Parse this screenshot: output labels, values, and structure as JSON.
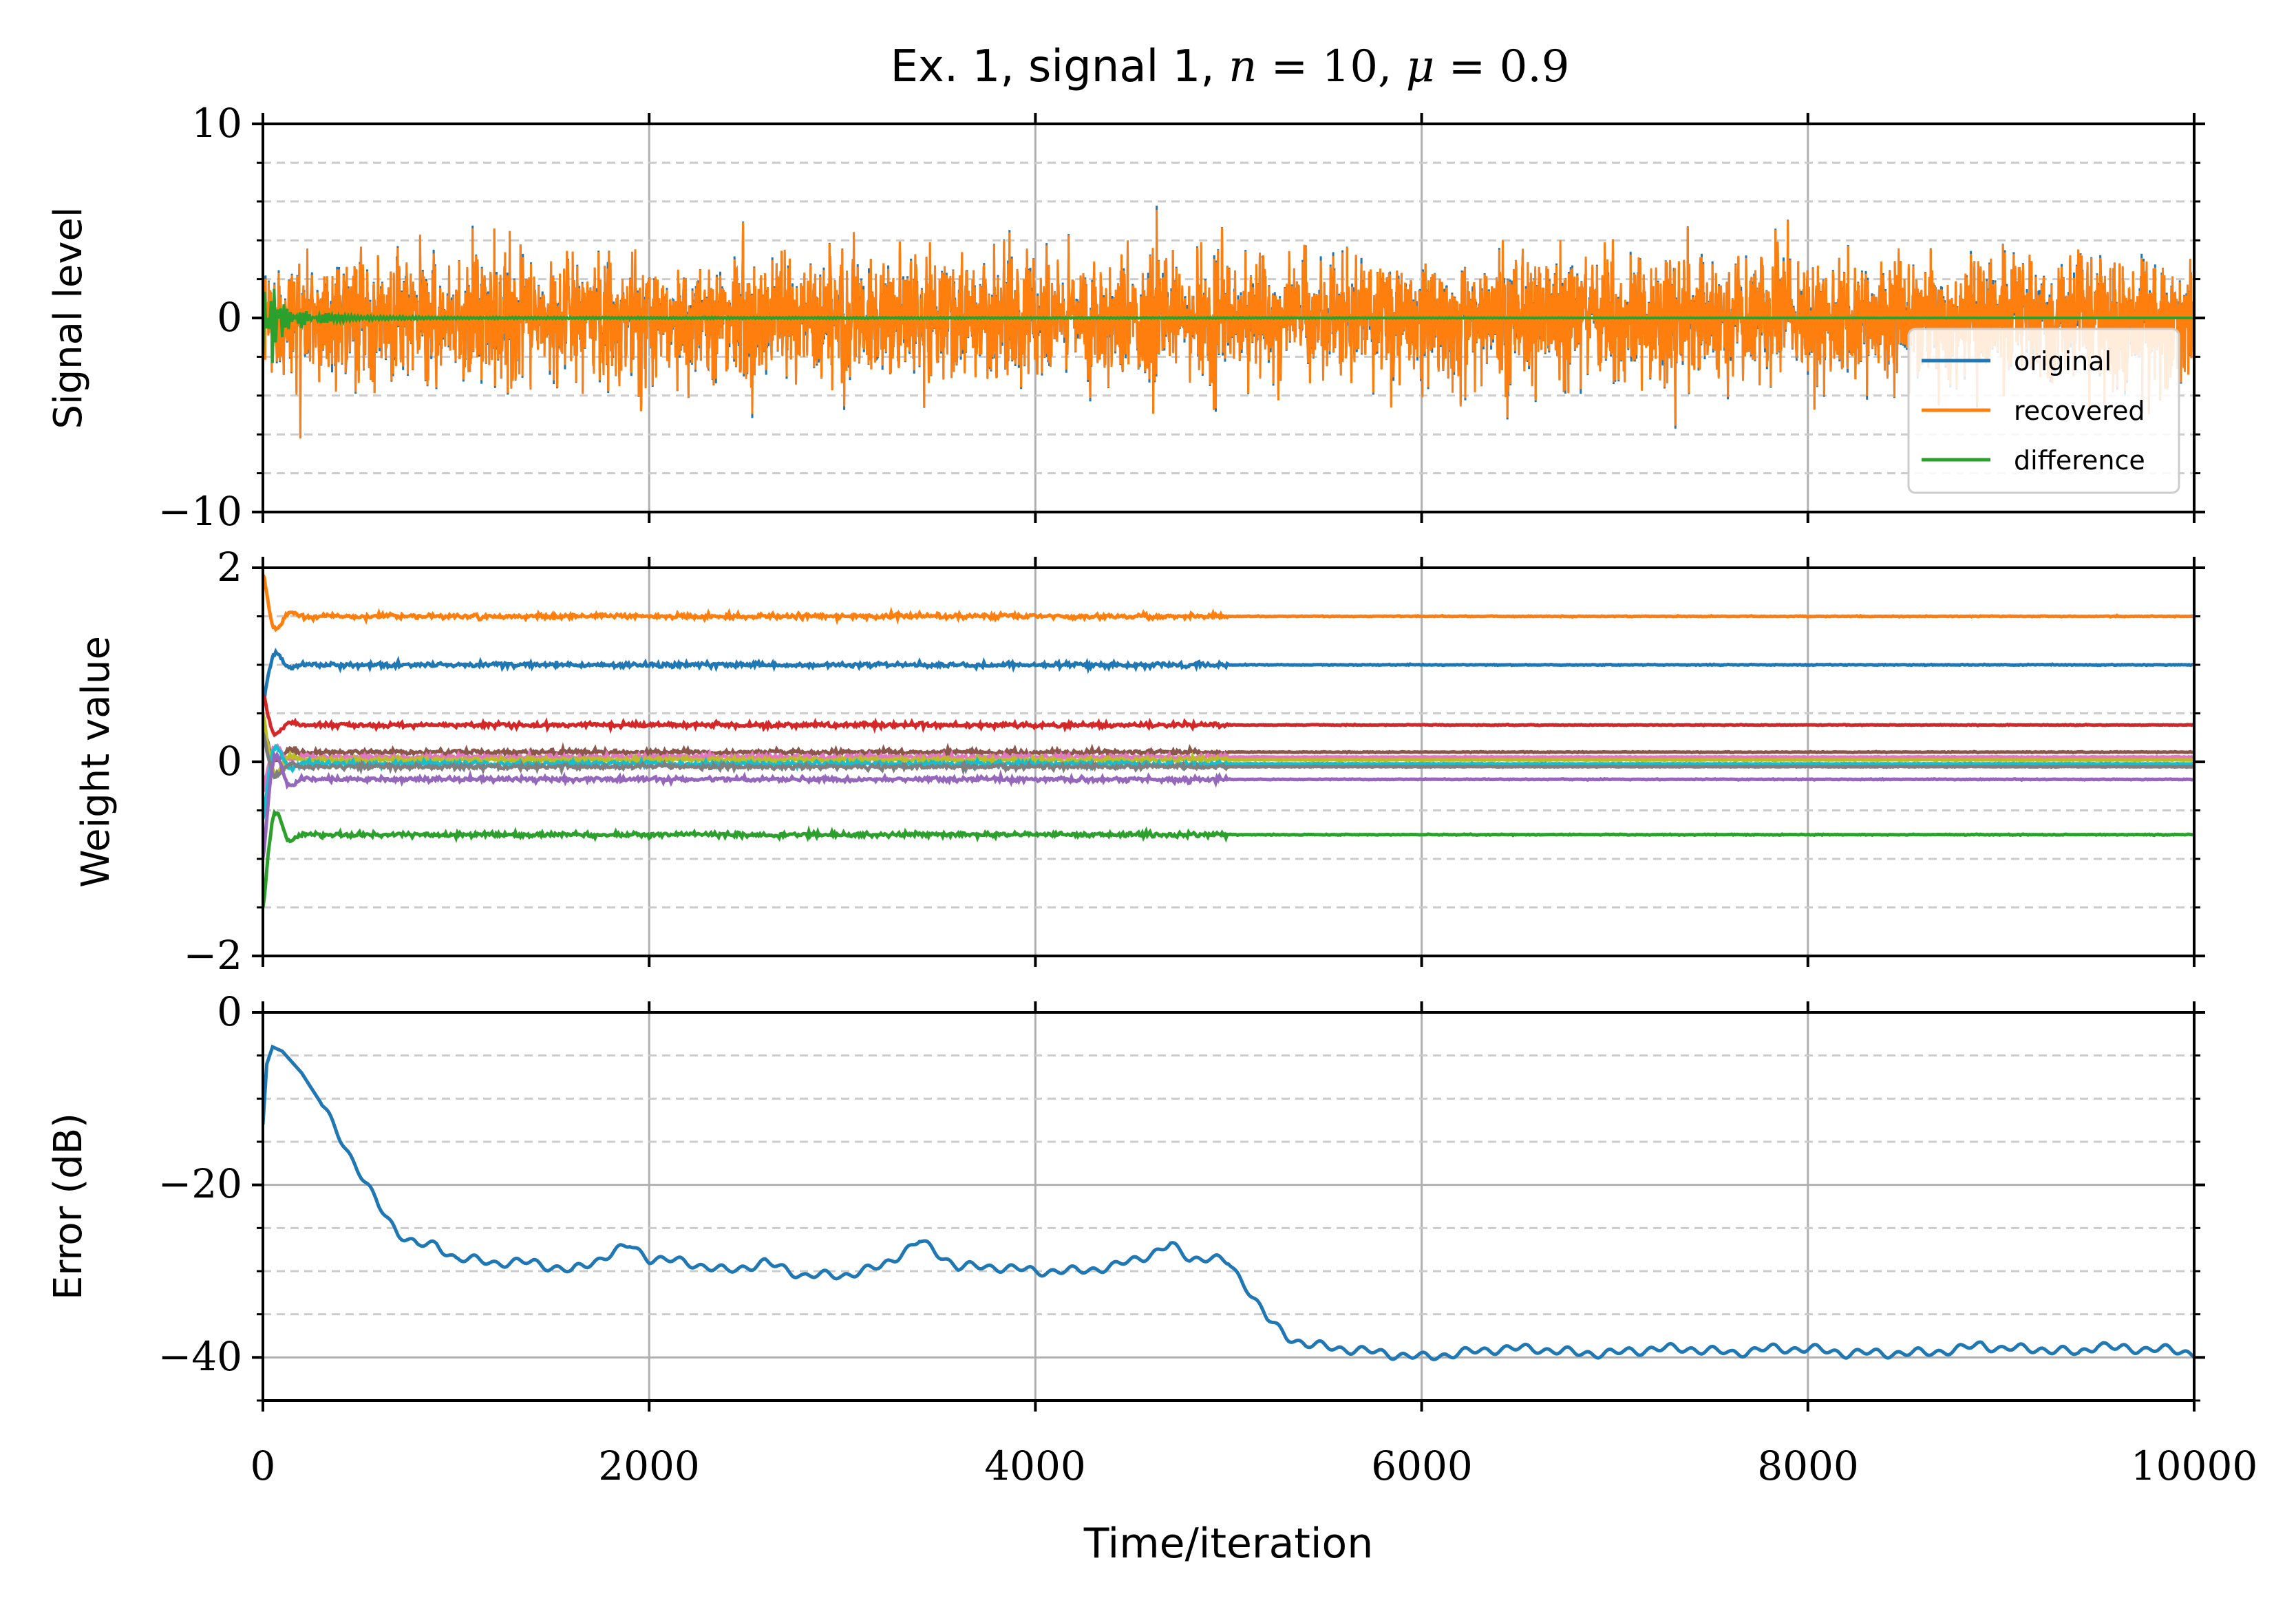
{
  "title_parts": {
    "prefix": "Ex. 1, signal 1, ",
    "n_var": "n",
    "n_eq": " = 10, ",
    "mu_var": "μ",
    "mu_eq": " = 0.9"
  },
  "colors": {
    "blue": "#1f77b4",
    "orange": "#ff7f0e",
    "green": "#2ca02c",
    "red": "#d62728",
    "purple": "#9467bd",
    "brown": "#8c564b",
    "pink": "#e377c2",
    "gray": "#7f7f7f",
    "olive": "#bcbd22",
    "cyan": "#17becf",
    "grid": "#b0b0b0",
    "minor_grid": "#cccccc"
  },
  "chart_data": [
    {
      "type": "line",
      "ylabel": "Signal level",
      "xlim": [
        0,
        10000
      ],
      "ylim": [
        -10,
        10
      ],
      "yticks": [
        "10",
        "0",
        "−10"
      ],
      "grid": true,
      "legend_position": "lower-right",
      "series": [
        {
          "name": "original",
          "color": "blue",
          "description_points": {
            "x": [
              0,
              10000
            ],
            "amplitude": [
              4,
              4
            ]
          }
        },
        {
          "name": "recovered",
          "color": "orange",
          "description_points": {
            "x": [
              0,
              10000
            ],
            "amplitude": [
              4,
              4
            ]
          }
        },
        {
          "name": "difference",
          "color": "green",
          "points": {
            "x": [
              0,
              50,
              100,
              200,
              300,
              500,
              1000,
              10000
            ],
            "y": [
              2.5,
              -2.5,
              1.2,
              -0.6,
              0.3,
              0.1,
              0.05,
              0.0
            ]
          }
        }
      ]
    },
    {
      "type": "line",
      "ylabel": "Weight value",
      "xlim": [
        0,
        10000
      ],
      "ylim": [
        -2,
        2
      ],
      "yticks": [
        "2",
        "0",
        "−2"
      ],
      "grid": true,
      "series": [
        {
          "color": "orange",
          "final": 1.5,
          "start": 1.95
        },
        {
          "color": "blue",
          "final": 1.0,
          "start": 0.6
        },
        {
          "color": "red",
          "final": 0.38,
          "start": 0.7
        },
        {
          "color": "brown",
          "final": 0.1,
          "start": 0.4
        },
        {
          "color": "pink",
          "final": 0.05,
          "start": -0.3
        },
        {
          "color": "olive",
          "final": 0.02,
          "start": 0.5
        },
        {
          "color": "cyan",
          "final": -0.02,
          "start": -0.6
        },
        {
          "color": "gray",
          "final": -0.05,
          "start": 0.3
        },
        {
          "color": "purple",
          "final": -0.18,
          "start": -1.0
        },
        {
          "color": "green",
          "final": -0.75,
          "start": -1.5
        }
      ]
    },
    {
      "type": "line",
      "ylabel": "Error (dB)",
      "xlabel": "Time/iteration",
      "xlim": [
        0,
        10000
      ],
      "ylim": [
        -45,
        0
      ],
      "yticks": [
        "0",
        "−20",
        "−40"
      ],
      "xticks": [
        "0",
        "2000",
        "4000",
        "6000",
        "8000",
        "10000"
      ],
      "grid": true,
      "series": [
        {
          "color": "blue",
          "x": [
            0,
            20,
            50,
            100,
            200,
            300,
            400,
            500,
            600,
            700,
            800,
            900,
            1000,
            1200,
            1400,
            1600,
            1800,
            1900,
            2000,
            2200,
            2400,
            2600,
            2800,
            3000,
            3200,
            3300,
            3400,
            3500,
            3600,
            3800,
            4000,
            4200,
            4400,
            4600,
            4700,
            4800,
            4900,
            5000,
            5100,
            5200,
            5300,
            5400,
            5600,
            5800,
            6000,
            6200,
            6400,
            6600,
            6800,
            7000,
            7200,
            7400,
            7600,
            7800,
            8000,
            8200,
            8400,
            8600,
            8800,
            8900,
            9000,
            9200,
            9400,
            9500,
            9600,
            9800,
            10000
          ],
          "y": [
            -13,
            -6,
            -4,
            -4.5,
            -7,
            -10.5,
            -14.5,
            -18.5,
            -22.5,
            -25.5,
            -27,
            -27,
            -28.5,
            -29,
            -29,
            -30,
            -28,
            -27,
            -28.5,
            -29,
            -30,
            -29,
            -30.5,
            -30.5,
            -29.5,
            -28,
            -26.5,
            -28,
            -29.5,
            -29.5,
            -30,
            -30,
            -29.5,
            -28,
            -27,
            -28.5,
            -28.5,
            -29,
            -32,
            -35.5,
            -37.5,
            -38.5,
            -39,
            -39.5,
            -40,
            -39.5,
            -39,
            -39,
            -39.5,
            -39.5,
            -39,
            -39,
            -39.5,
            -39,
            -39,
            -39.5,
            -39.5,
            -39.5,
            -39,
            -38.5,
            -39,
            -39,
            -39.5,
            -38.5,
            -39,
            -39,
            -39.5
          ]
        }
      ]
    }
  ]
}
